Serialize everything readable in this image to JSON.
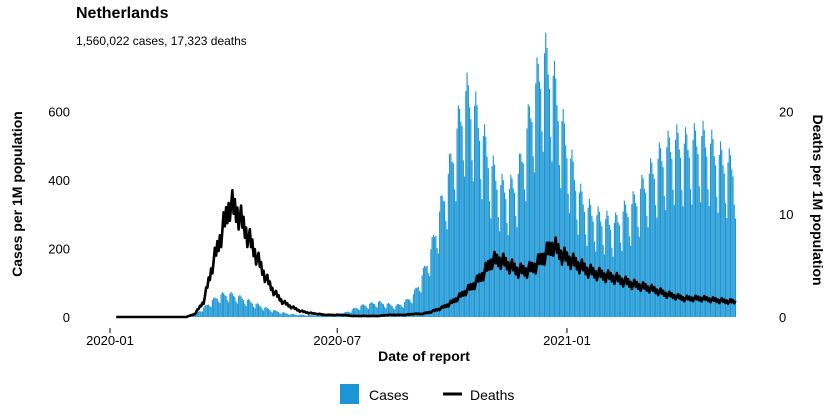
{
  "title": "Netherlands",
  "subtitle": "1,560,022 cases, 17,323 deaths",
  "colors": {
    "cases": "#1a96d4",
    "deaths": "#000000"
  },
  "chart_data": {
    "type": "bar+line",
    "title": "Netherlands",
    "subtitle": "1,560,022 cases, 17,323 deaths",
    "xlabel": "Date of report",
    "ylabel_left": "Cases per 1M population",
    "ylabel_right": "Deaths per 1M population",
    "x_ticks": [
      "2020-01",
      "2020-07",
      "2021-01"
    ],
    "x_range": [
      "2020-01-01",
      "2021-05-18"
    ],
    "ylim_left": [
      0,
      750
    ],
    "ylim_right": [
      0,
      25
    ],
    "y_ticks_left": [
      0,
      200,
      400,
      600
    ],
    "y_ticks_right": [
      0,
      10,
      20
    ],
    "grid": false,
    "legend": {
      "position": "bottom",
      "entries": [
        "Cases",
        "Deaths"
      ]
    },
    "weekly_series": {
      "week_start": [
        "2020-01-06",
        "2020-01-13",
        "2020-01-20",
        "2020-01-27",
        "2020-02-03",
        "2020-02-10",
        "2020-02-17",
        "2020-02-24",
        "2020-03-02",
        "2020-03-09",
        "2020-03-16",
        "2020-03-23",
        "2020-03-30",
        "2020-04-06",
        "2020-04-13",
        "2020-04-20",
        "2020-04-27",
        "2020-05-04",
        "2020-05-11",
        "2020-05-18",
        "2020-05-25",
        "2020-06-01",
        "2020-06-08",
        "2020-06-15",
        "2020-06-22",
        "2020-06-29",
        "2020-07-06",
        "2020-07-13",
        "2020-07-20",
        "2020-07-27",
        "2020-08-03",
        "2020-08-10",
        "2020-08-17",
        "2020-08-24",
        "2020-08-31",
        "2020-09-07",
        "2020-09-14",
        "2020-09-21",
        "2020-09-28",
        "2020-10-05",
        "2020-10-12",
        "2020-10-19",
        "2020-10-26",
        "2020-11-02",
        "2020-11-09",
        "2020-11-16",
        "2020-11-23",
        "2020-11-30",
        "2020-12-07",
        "2020-12-14",
        "2020-12-21",
        "2020-12-28",
        "2021-01-04",
        "2021-01-11",
        "2021-01-18",
        "2021-01-25",
        "2021-02-01",
        "2021-02-08",
        "2021-02-15",
        "2021-02-22",
        "2021-03-01",
        "2021-03-08",
        "2021-03-15",
        "2021-03-22",
        "2021-03-29",
        "2021-04-05",
        "2021-04-12",
        "2021-04-19",
        "2021-04-26",
        "2021-05-03",
        "2021-05-10"
      ],
      "cases_per_1m": [
        0,
        0,
        0,
        0,
        0,
        0,
        0,
        0,
        2,
        8,
        25,
        45,
        60,
        62,
        55,
        45,
        35,
        25,
        18,
        12,
        8,
        6,
        5,
        5,
        5,
        6,
        10,
        20,
        30,
        35,
        40,
        35,
        30,
        40,
        60,
        110,
        180,
        280,
        380,
        500,
        600,
        560,
        480,
        400,
        350,
        340,
        380,
        500,
        620,
        700,
        640,
        520,
        420,
        330,
        290,
        270,
        260,
        250,
        280,
        300,
        340,
        380,
        420,
        450,
        470,
        460,
        470,
        480,
        460,
        430,
        410
      ],
      "deaths_per_1m": [
        0,
        0,
        0,
        0,
        0,
        0,
        0,
        0,
        0,
        0.3,
        1.5,
        5,
        8,
        11,
        10,
        8,
        6,
        4,
        2.5,
        1.5,
        1,
        0.6,
        0.4,
        0.3,
        0.2,
        0.2,
        0.2,
        0.1,
        0.1,
        0.1,
        0.1,
        0.2,
        0.2,
        0.2,
        0.3,
        0.3,
        0.5,
        0.8,
        1.2,
        1.8,
        2.5,
        3.2,
        4.2,
        5.5,
        5.5,
        5,
        4.5,
        4.5,
        5,
        6,
        7,
        6,
        5.5,
        5,
        4.5,
        4.2,
        4,
        3.8,
        3.5,
        3.2,
        3,
        2.8,
        2.5,
        2.2,
        2,
        1.8,
        1.8,
        1.8,
        1.7,
        1.6,
        1.5
      ]
    }
  }
}
